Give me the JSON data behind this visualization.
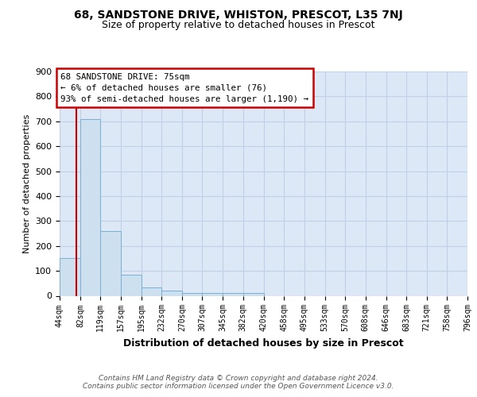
{
  "title": "68, SANDSTONE DRIVE, WHISTON, PRESCOT, L35 7NJ",
  "subtitle": "Size of property relative to detached houses in Prescot",
  "xlabel": "Distribution of detached houses by size in Prescot",
  "ylabel": "Number of detached properties",
  "bar_edges": [
    44,
    82,
    119,
    157,
    195,
    232,
    270,
    307,
    345,
    382,
    420,
    458,
    495,
    533,
    570,
    608,
    646,
    683,
    721,
    758,
    796
  ],
  "bar_heights": [
    150,
    710,
    260,
    85,
    35,
    20,
    10,
    10,
    10,
    10,
    0,
    0,
    0,
    0,
    0,
    0,
    0,
    0,
    0,
    0
  ],
  "bar_color": "#cce0f0",
  "bar_edge_color": "#7ab0d4",
  "property_line_x": 75,
  "property_line_color": "#cc0000",
  "annotation_text": "68 SANDSTONE DRIVE: 75sqm\n← 6% of detached houses are smaller (76)\n93% of semi-detached houses are larger (1,190) →",
  "annotation_box_color": "#cc0000",
  "ylim": [
    0,
    900
  ],
  "yticks": [
    0,
    100,
    200,
    300,
    400,
    500,
    600,
    700,
    800,
    900
  ],
  "grid_color": "#c0d0e8",
  "background_color": "#dce8f5",
  "footer_text": "Contains HM Land Registry data © Crown copyright and database right 2024.\nContains public sector information licensed under the Open Government Licence v3.0.",
  "title_fontsize": 10,
  "subtitle_fontsize": 9,
  "tick_fontsize": 7,
  "ylabel_fontsize": 8,
  "xlabel_fontsize": 9
}
